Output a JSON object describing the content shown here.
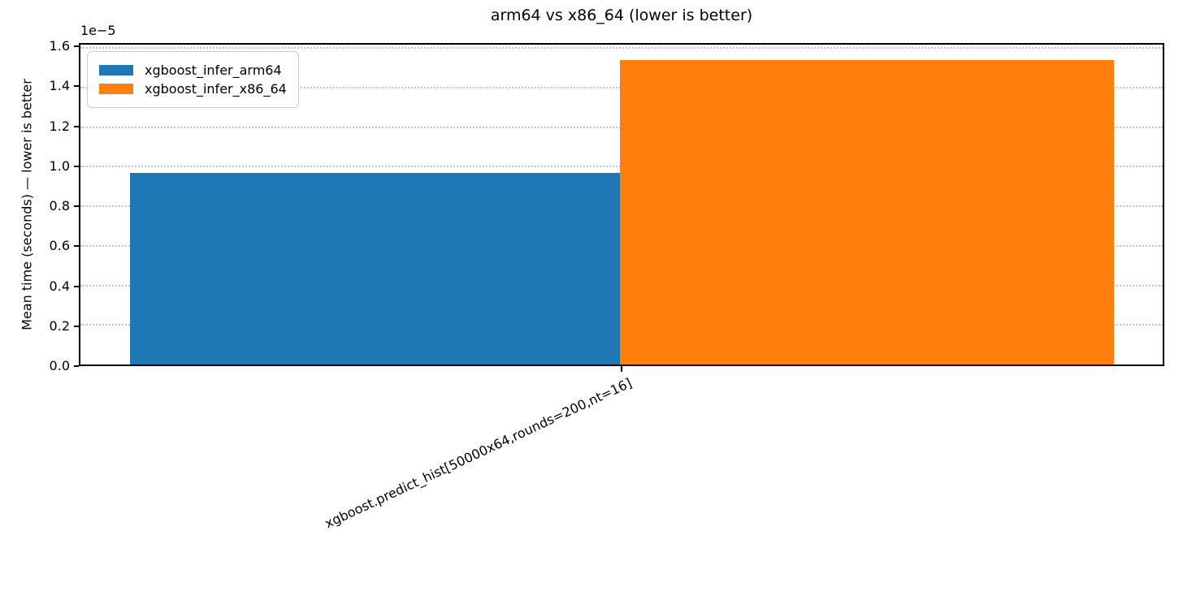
{
  "chart_data": {
    "type": "bar",
    "title": "arm64 vs x86_64 (lower is better)",
    "ylabel": "Mean time (seconds) — lower is better",
    "xlabel": "",
    "y_offset_text": "1e−5",
    "categories": [
      "xgboost.predict_hist[50000x64,rounds=200,nt=16]"
    ],
    "series": [
      {
        "name": "xgboost_infer_arm64",
        "color": "#1f77b4",
        "values": [
          9.7e-06
        ]
      },
      {
        "name": "xgboost_infer_x86_64",
        "color": "#ff7f0e",
        "values": [
          1.54e-05
        ]
      }
    ],
    "ylim": [
      0,
      1.617e-05
    ],
    "ytick_values": [
      0,
      2e-06,
      4e-06,
      6e-06,
      8e-06,
      1e-05,
      1.2e-05,
      1.4e-05,
      1.6e-05
    ],
    "ytick_labels": [
      "0.0",
      "0.2",
      "0.4",
      "0.6",
      "0.8",
      "1.0",
      "1.2",
      "1.4",
      "1.6"
    ],
    "grid": {
      "axis": "y",
      "style": "dotted",
      "color": "#c3c3c3"
    },
    "legend_position": "upper left",
    "spine_color": "#000000",
    "background": "#ffffff"
  }
}
